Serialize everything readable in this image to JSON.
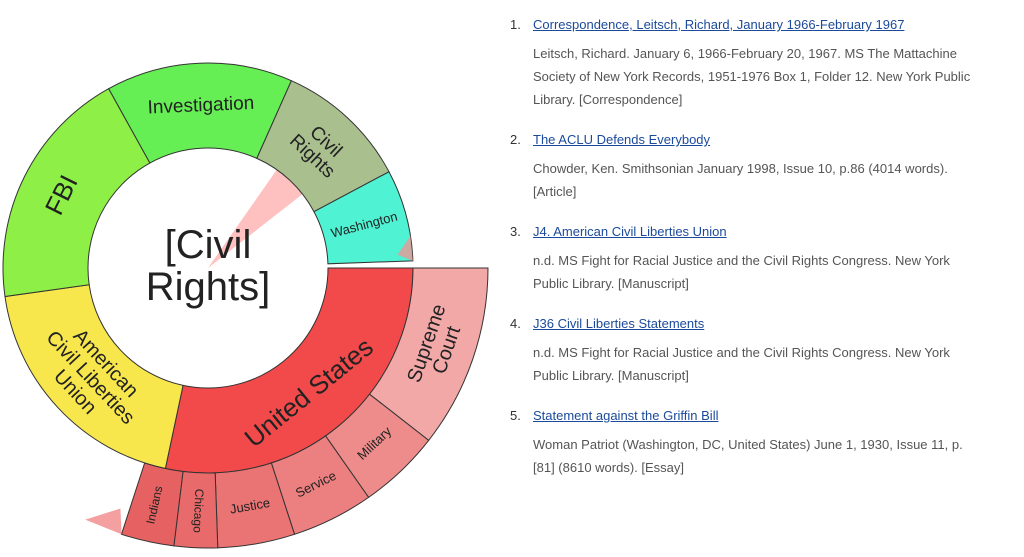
{
  "diagram": {
    "center_label": [
      "[Civil",
      "Rights]"
    ],
    "segments": [
      {
        "label": [
          "Investigation"
        ],
        "color": "#66ee55"
      },
      {
        "label": [
          "Civil",
          "Rights"
        ],
        "color": "#a9bf8e"
      },
      {
        "label": [
          "Washington"
        ],
        "color": "#4ff2d2"
      },
      {
        "label": [
          "United States"
        ],
        "color": "#f24a4a"
      },
      {
        "label": [
          "American",
          "Civil Liberties",
          "Union"
        ],
        "color": "#f7e64c"
      },
      {
        "label": [
          "FBI"
        ],
        "color": "#8ef046"
      }
    ],
    "subsegments": [
      {
        "label": [
          "Supreme",
          "Court"
        ],
        "color": "#f3a8a8"
      },
      {
        "label": [
          "Military"
        ],
        "color": "#ee8c8c"
      },
      {
        "label": [
          "Service"
        ],
        "color": "#ec7f7f"
      },
      {
        "label": [
          "Justice"
        ],
        "color": "#ea7373"
      },
      {
        "label": [
          "Chicago"
        ],
        "color": "#e86a6a"
      },
      {
        "label": [
          "Indians"
        ],
        "color": "#e66262"
      }
    ]
  },
  "results": [
    {
      "number": "1.",
      "title": "Correspondence, Leitsch, Richard, January 1966-February 1967",
      "description": "Leitsch, Richard. January 6, 1966-February 20, 1967. MS The Mattachine Society of New York Records, 1951-1976 Box 1, Folder 12. New York Public Library. [Correspondence]"
    },
    {
      "number": "2.",
      "title": "The ACLU Defends Everybody",
      "description": "Chowder, Ken. Smithsonian January 1998, Issue 10, p.86 (4014 words). [Article]"
    },
    {
      "number": "3.",
      "title": "J4. American Civil Liberties Union",
      "description": "n.d. MS Fight for Racial Justice and the Civil Rights Congress. New York Public Library. [Manuscript]"
    },
    {
      "number": "4.",
      "title": "J36 Civil Liberties Statements",
      "description": "n.d. MS Fight for Racial Justice and the Civil Rights Congress. New York Public Library. [Manuscript]"
    },
    {
      "number": "5.",
      "title": "Statement against the Griffin Bill",
      "description": "Woman Patriot (Washington, DC, United States) June 1, 1930, Issue 11, p. [81] (8610 words). [Essay]"
    }
  ]
}
